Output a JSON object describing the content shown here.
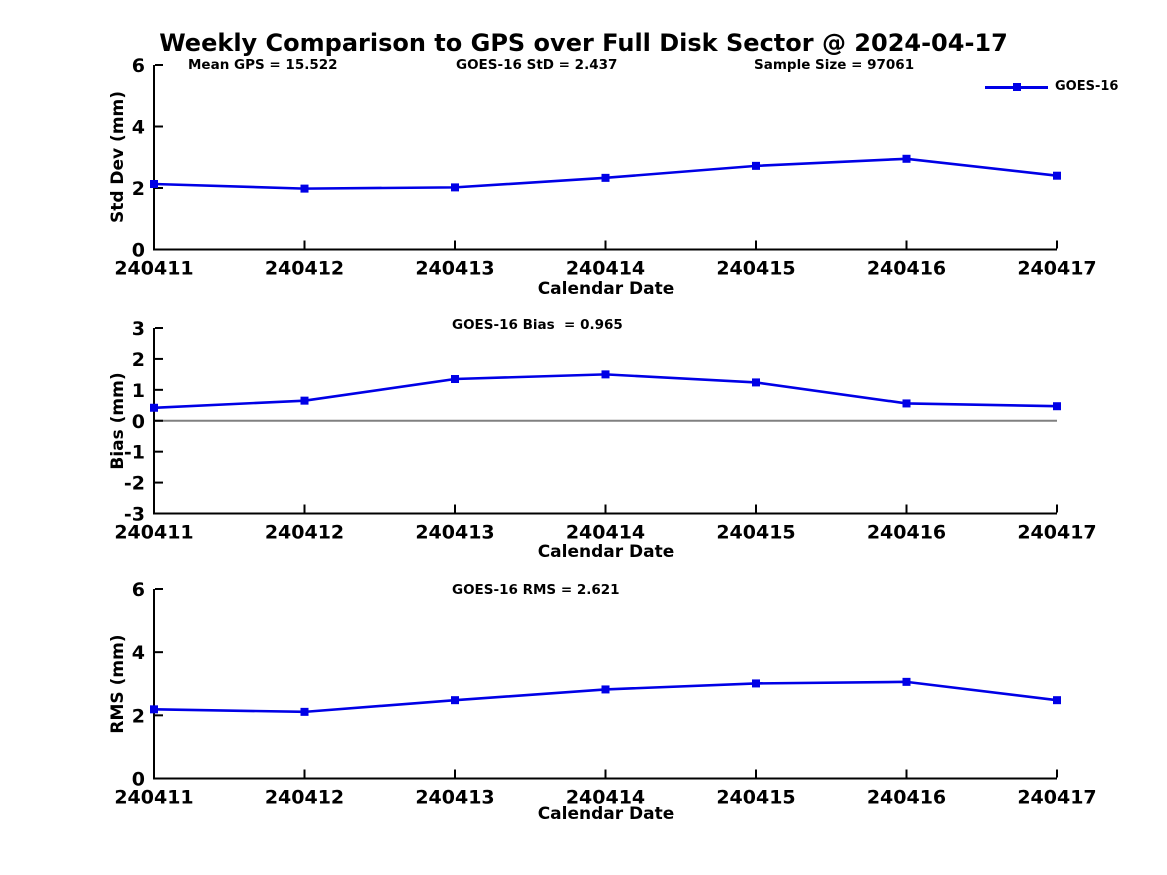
{
  "page": {
    "title": "Weekly Comparison to GPS over Full Disk Sector @ 2024-04-17",
    "legend": {
      "label": "GOES-16"
    },
    "colors": {
      "line": "#0000e6",
      "axis": "#000000",
      "zero_line": "#808080",
      "text": "#000000",
      "background": "#ffffff"
    }
  },
  "chart_data": [
    {
      "type": "line",
      "title": "Weekly Comparison to GPS over Full Disk Sector @ 2024-04-17",
      "categories": [
        "240411",
        "240412",
        "240413",
        "240414",
        "240415",
        "240416",
        "240417"
      ],
      "series": [
        {
          "name": "GOES-16",
          "values": [
            2.13,
            1.98,
            2.02,
            2.33,
            2.72,
            2.95,
            2.4
          ]
        }
      ],
      "annotations": [
        "Mean GPS = 15.522",
        "GOES-16 StD = 2.437",
        "Sample Size = 97061"
      ],
      "xlabel": "Calendar Date",
      "ylabel": "Std Dev (mm)",
      "ylim": [
        0,
        6
      ],
      "yticks": [
        0,
        2,
        4,
        6
      ],
      "grid": false,
      "legend_position": "top-right",
      "marker": "square"
    },
    {
      "type": "line",
      "categories": [
        "240411",
        "240412",
        "240413",
        "240414",
        "240415",
        "240416",
        "240417"
      ],
      "series": [
        {
          "name": "GOES-16",
          "values": [
            0.42,
            0.65,
            1.35,
            1.5,
            1.24,
            0.56,
            0.47
          ]
        }
      ],
      "annotation": "GOES-16 Bias  = 0.965",
      "xlabel": "Calendar Date",
      "ylabel": "Bias (mm)",
      "ylim": [
        -3,
        3
      ],
      "yticks": [
        -3,
        -2,
        -1,
        0,
        1,
        2,
        3
      ],
      "zero_line": true,
      "grid": false,
      "marker": "square"
    },
    {
      "type": "line",
      "categories": [
        "240411",
        "240412",
        "240413",
        "240414",
        "240415",
        "240416",
        "240417"
      ],
      "series": [
        {
          "name": "GOES-16",
          "values": [
            2.19,
            2.11,
            2.48,
            2.82,
            3.01,
            3.06,
            2.48
          ]
        }
      ],
      "annotation": "GOES-16 RMS = 2.621",
      "xlabel": "Calendar Date",
      "ylabel": "RMS (mm)",
      "ylim": [
        0,
        6
      ],
      "yticks": [
        0,
        2,
        4,
        6
      ],
      "grid": false,
      "marker": "square"
    }
  ]
}
